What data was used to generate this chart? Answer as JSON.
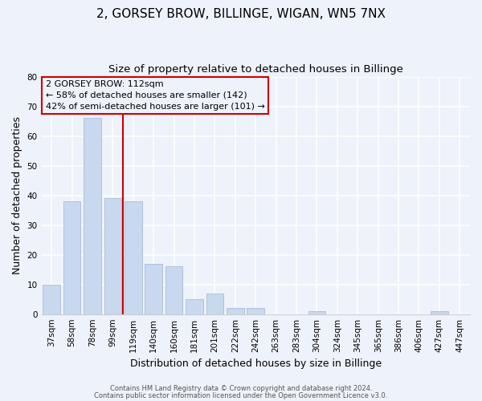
{
  "title": "2, GORSEY BROW, BILLINGE, WIGAN, WN5 7NX",
  "subtitle": "Size of property relative to detached houses in Billinge",
  "xlabel": "Distribution of detached houses by size in Billinge",
  "ylabel": "Number of detached properties",
  "categories": [
    "37sqm",
    "58sqm",
    "78sqm",
    "99sqm",
    "119sqm",
    "140sqm",
    "160sqm",
    "181sqm",
    "201sqm",
    "222sqm",
    "242sqm",
    "263sqm",
    "283sqm",
    "304sqm",
    "324sqm",
    "345sqm",
    "365sqm",
    "386sqm",
    "406sqm",
    "427sqm",
    "447sqm"
  ],
  "values": [
    10,
    38,
    66,
    39,
    38,
    17,
    16,
    5,
    7,
    2,
    2,
    0,
    0,
    1,
    0,
    0,
    0,
    0,
    0,
    1,
    0
  ],
  "bar_color": "#c8d8ee",
  "bar_edge_color": "#a8bcd8",
  "vline_color": "#cc0000",
  "vline_x_index": 4,
  "ylim": [
    0,
    80
  ],
  "yticks": [
    0,
    10,
    20,
    30,
    40,
    50,
    60,
    70,
    80
  ],
  "annotation_title": "2 GORSEY BROW: 112sqm",
  "annotation_line1": "← 58% of detached houses are smaller (142)",
  "annotation_line2": "42% of semi-detached houses are larger (101) →",
  "background_color": "#eef2fa",
  "footer_line1": "Contains HM Land Registry data © Crown copyright and database right 2024.",
  "footer_line2": "Contains public sector information licensed under the Open Government Licence v3.0.",
  "title_fontsize": 11,
  "subtitle_fontsize": 9.5,
  "axis_label_fontsize": 9,
  "tick_fontsize": 7.5,
  "annotation_fontsize": 8,
  "footer_fontsize": 6
}
